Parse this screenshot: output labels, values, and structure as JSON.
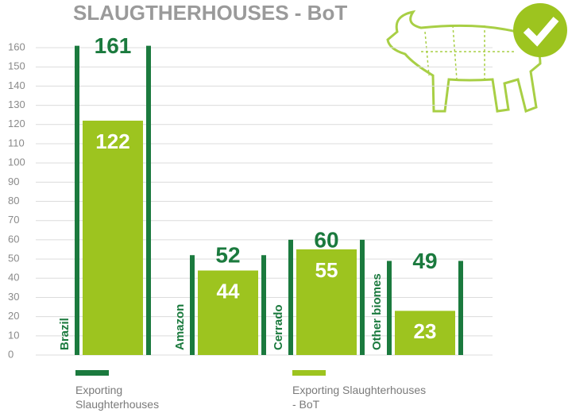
{
  "chart_data": {
    "type": "bar",
    "title": "SLAUGTHERHOUSES - BoT",
    "categories": [
      "Brazil",
      "Amazon",
      "Cerrado",
      "Other biomes"
    ],
    "series": [
      {
        "name": "Exporting Slaughterhouses",
        "color": "#1b7a3e",
        "values": [
          161,
          52,
          60,
          49
        ]
      },
      {
        "name": "Exporting Slaughterhouses - BoT",
        "color": "#9dc41f",
        "values": [
          122,
          44,
          55,
          23
        ]
      }
    ],
    "ylim": [
      0,
      160
    ],
    "yticks": [
      0,
      10,
      20,
      30,
      40,
      50,
      60,
      70,
      80,
      90,
      100,
      110,
      120,
      130,
      140,
      150,
      160
    ],
    "grid": true
  }
}
